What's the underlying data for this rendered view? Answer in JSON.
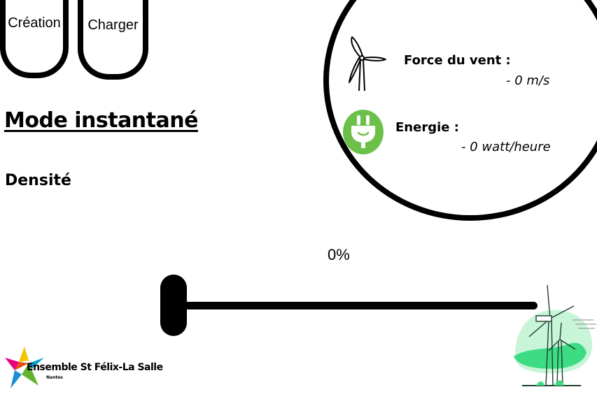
{
  "nav": {
    "creation_label": "Création",
    "charger_label": "Charger"
  },
  "main": {
    "title": "Mode instantané",
    "density_label": "Densité"
  },
  "info": {
    "wind_label": "Force du vent :",
    "wind_value": "- 0 m/s",
    "energy_label": "Energie :",
    "energy_value": "- 0 watt/heure",
    "icons": [
      "wind-turbine-icon",
      "plug-icon"
    ],
    "colors": {
      "energy_icon": "#6cc04a"
    }
  },
  "slider": {
    "percent_label": "0%",
    "value": 0
  },
  "footer": {
    "logo_text": "Ensemble St Félix-La Salle",
    "logo_sub": "Nantes"
  },
  "colors": {
    "illustration_green": "#3ddc84"
  }
}
